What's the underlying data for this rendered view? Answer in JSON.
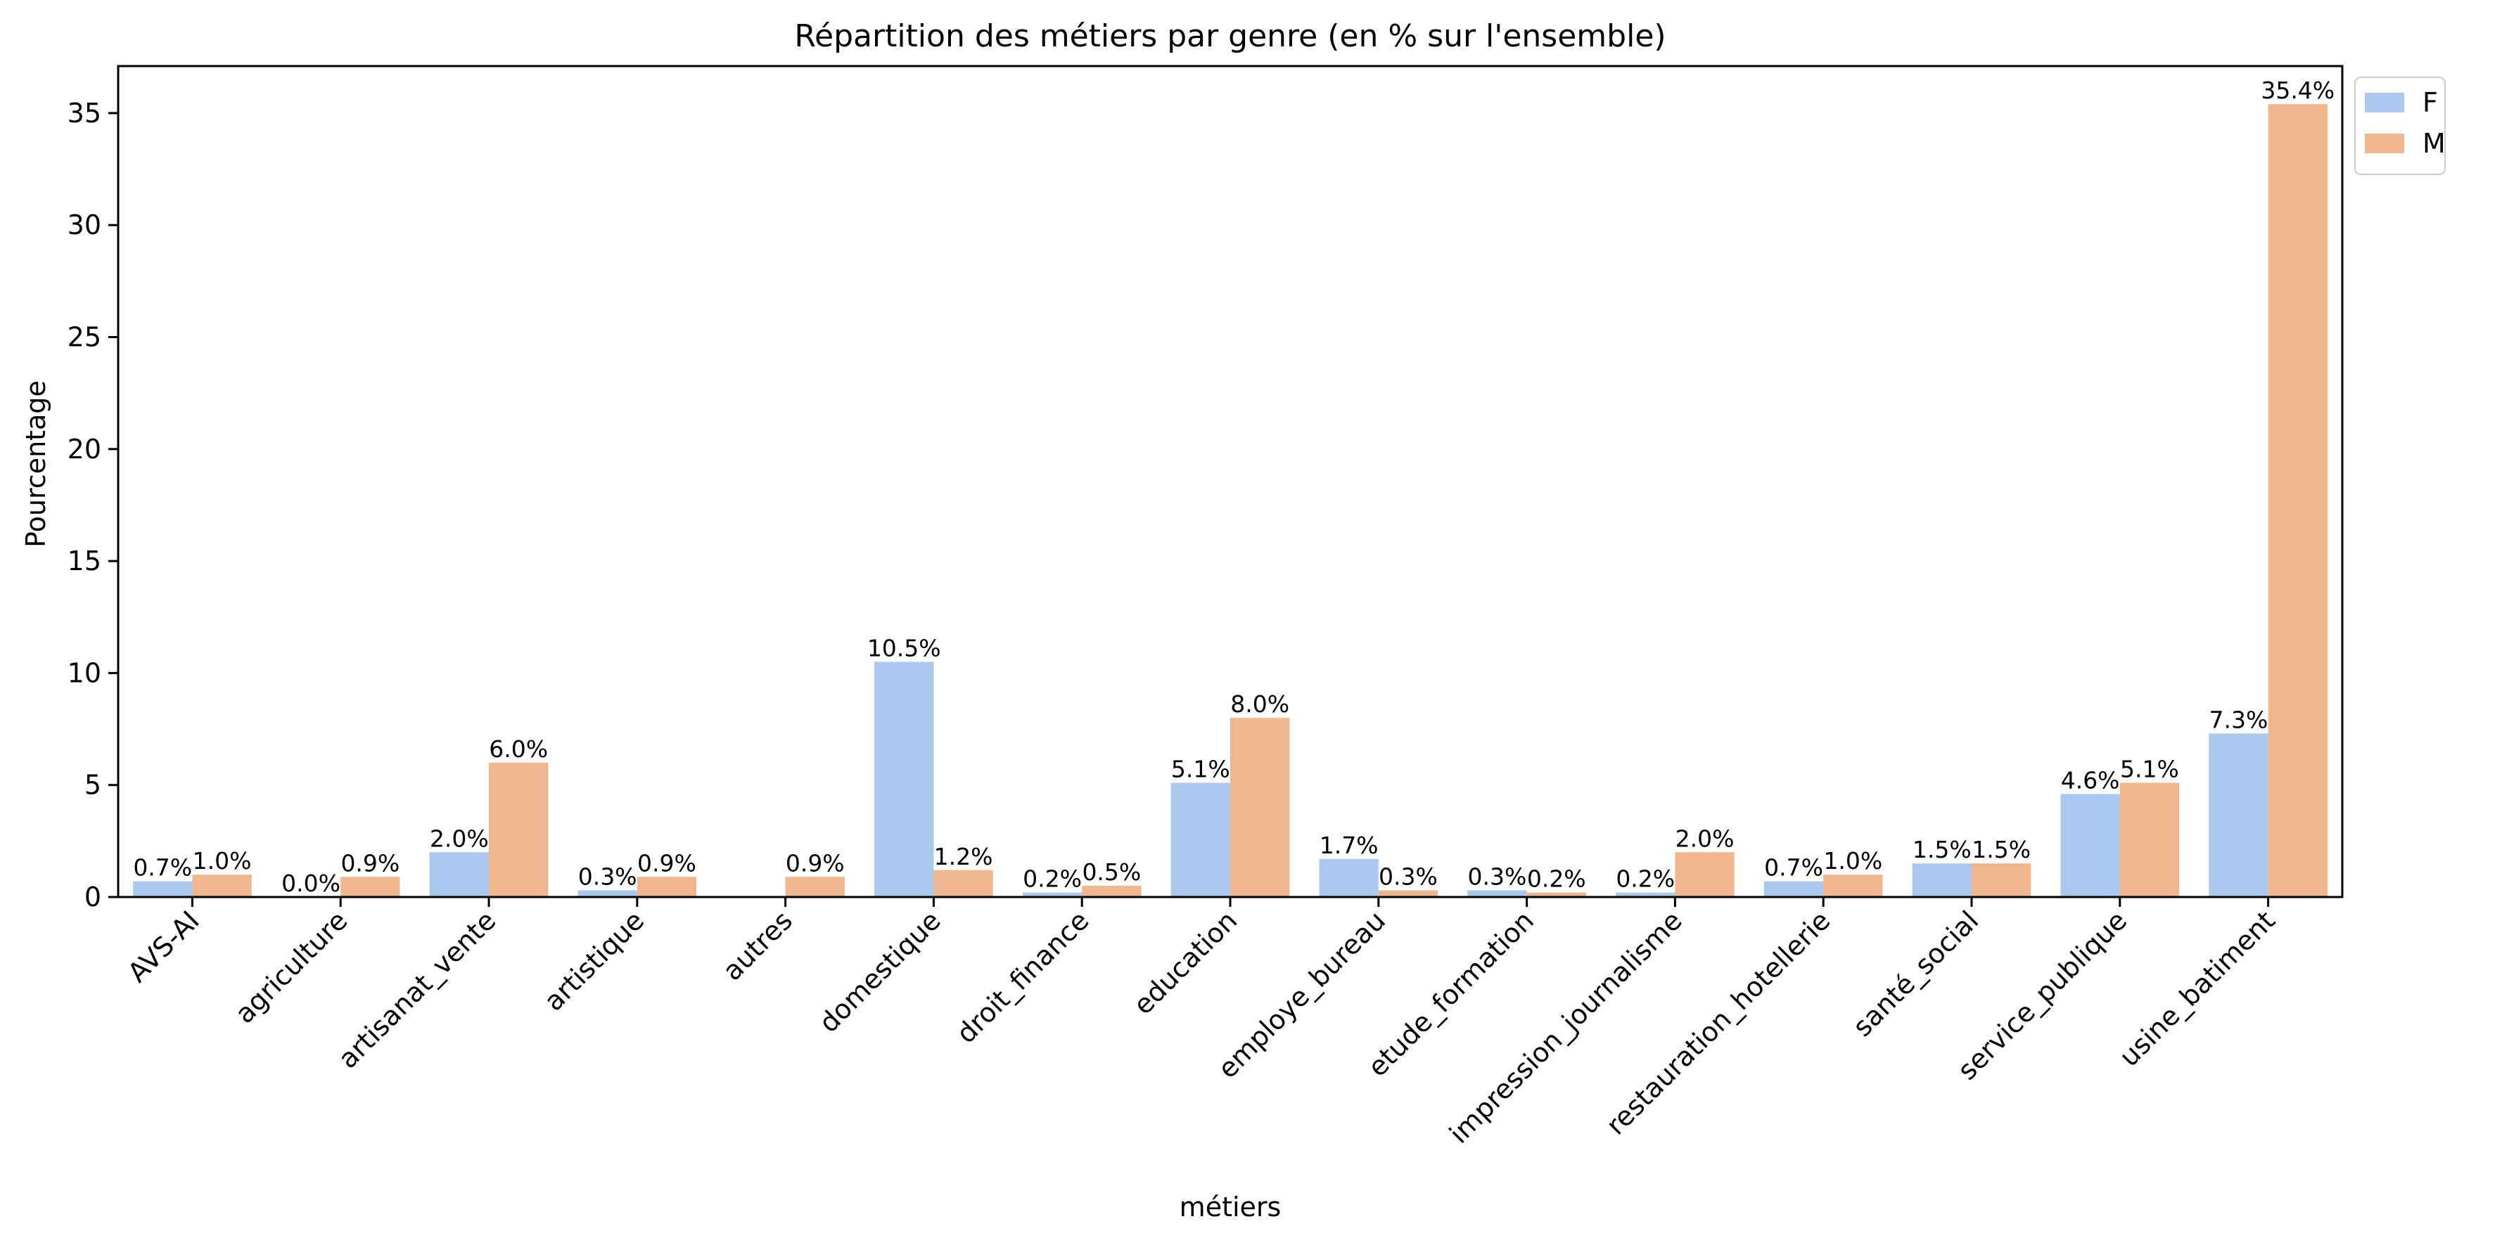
{
  "chart_data": {
    "type": "bar",
    "title": "Répartition des métiers par genre (en % sur l'ensemble)",
    "xlabel": "métiers",
    "ylabel": "Pourcentage",
    "ylim": [
      0,
      37.1
    ],
    "yticks": [
      0,
      5,
      10,
      15,
      20,
      25,
      30,
      35
    ],
    "grid": false,
    "legend_position": "top-right, outside plot",
    "categories": [
      "AVS-AI",
      "agriculture",
      "artisanat_vente",
      "artistique",
      "autres",
      "domestique",
      "droit_finance",
      "education",
      "employe_bureau",
      "etude_formation",
      "impression_journalisme",
      "restauration_hotellerie",
      "santé_social",
      "service_publique",
      "usine_batiment"
    ],
    "series": [
      {
        "name": "F",
        "color": "#abc9ee",
        "values": [
          0.7,
          0.0,
          2.0,
          0.3,
          0.0,
          10.5,
          0.2,
          5.1,
          1.7,
          0.3,
          0.2,
          0.7,
          1.5,
          4.6,
          7.3
        ],
        "labels": [
          "0.7%",
          "0.0%",
          "2.0%",
          "0.3%",
          null,
          "10.5%",
          "0.2%",
          "5.1%",
          "1.7%",
          "0.3%",
          "0.2%",
          "0.7%",
          "1.5%",
          "4.6%",
          "7.3%"
        ]
      },
      {
        "name": "M",
        "color": "#f0b68e",
        "values": [
          1.0,
          0.9,
          6.0,
          0.9,
          0.9,
          1.2,
          0.5,
          8.0,
          0.3,
          0.2,
          2.0,
          1.0,
          1.5,
          5.1,
          35.4
        ],
        "labels": [
          "1.0%",
          "0.9%",
          "6.0%",
          "0.9%",
          "0.9%",
          "1.2%",
          "0.5%",
          "8.0%",
          "0.3%",
          "0.2%",
          "2.0%",
          "1.0%",
          "1.5%",
          "5.1%",
          "35.4%"
        ]
      }
    ]
  }
}
